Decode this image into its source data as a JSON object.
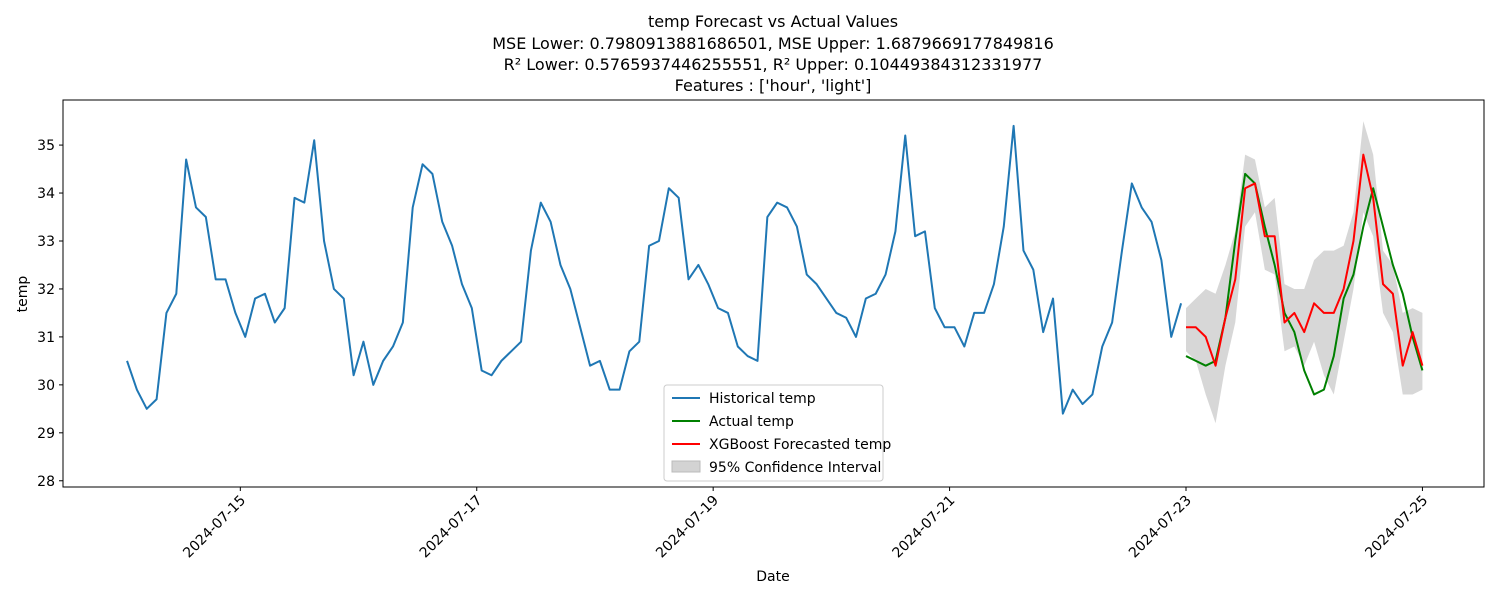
{
  "chart_data": {
    "type": "line",
    "title": [
      "temp Forecast vs Actual Values",
      "MSE Lower: 0.7980913881686501, MSE Upper: 1.6879669177849816",
      "R² Lower: 0.5765937446255551, R² Upper: 0.10449384312331977",
      "Features : ['hour', 'light']"
    ],
    "xlabel": "Date",
    "ylabel": "temp",
    "xlim": [
      "2024-07-13 12:00",
      "2024-07-25 12:30"
    ],
    "xticks": [
      "2024-07-15",
      "2024-07-17",
      "2024-07-19",
      "2024-07-21",
      "2024-07-23",
      "2024-07-25"
    ],
    "ylim": [
      27.87,
      35.94
    ],
    "yticks": [
      28,
      29,
      30,
      31,
      32,
      33,
      34,
      35
    ],
    "legend": "lower center",
    "x_history": [
      "2024-07-14 01:00",
      "2024-07-14 03:00",
      "2024-07-14 05:00",
      "2024-07-14 07:00",
      "2024-07-14 09:00",
      "2024-07-14 11:00",
      "2024-07-14 13:00",
      "2024-07-14 15:00",
      "2024-07-14 17:00",
      "2024-07-14 19:00",
      "2024-07-14 21:00",
      "2024-07-14 23:00",
      "2024-07-15 01:00",
      "2024-07-15 03:00",
      "2024-07-15 05:00",
      "2024-07-15 07:00",
      "2024-07-15 09:00",
      "2024-07-15 11:00",
      "2024-07-15 13:00",
      "2024-07-15 15:00",
      "2024-07-15 17:00",
      "2024-07-15 19:00",
      "2024-07-15 21:00",
      "2024-07-15 23:00",
      "2024-07-16 01:00",
      "2024-07-16 03:00",
      "2024-07-16 05:00",
      "2024-07-16 07:00",
      "2024-07-16 09:00",
      "2024-07-16 11:00",
      "2024-07-16 13:00",
      "2024-07-16 15:00",
      "2024-07-16 17:00",
      "2024-07-16 19:00",
      "2024-07-16 21:00",
      "2024-07-16 23:00",
      "2024-07-17 01:00",
      "2024-07-17 03:00",
      "2024-07-17 05:00",
      "2024-07-17 07:00",
      "2024-07-17 09:00",
      "2024-07-17 11:00",
      "2024-07-17 13:00",
      "2024-07-17 15:00",
      "2024-07-17 17:00",
      "2024-07-17 19:00",
      "2024-07-17 21:00",
      "2024-07-17 23:00",
      "2024-07-18 01:00",
      "2024-07-18 03:00",
      "2024-07-18 05:00",
      "2024-07-18 07:00",
      "2024-07-18 09:00",
      "2024-07-18 11:00",
      "2024-07-18 13:00",
      "2024-07-18 15:00",
      "2024-07-18 17:00",
      "2024-07-18 19:00",
      "2024-07-18 21:00",
      "2024-07-18 23:00",
      "2024-07-19 01:00",
      "2024-07-19 03:00",
      "2024-07-19 05:00",
      "2024-07-19 07:00",
      "2024-07-19 09:00",
      "2024-07-19 11:00",
      "2024-07-19 13:00",
      "2024-07-19 15:00",
      "2024-07-19 17:00",
      "2024-07-19 19:00",
      "2024-07-19 21:00",
      "2024-07-19 23:00",
      "2024-07-20 01:00",
      "2024-07-20 03:00",
      "2024-07-20 05:00",
      "2024-07-20 07:00",
      "2024-07-20 09:00",
      "2024-07-20 11:00",
      "2024-07-20 13:00",
      "2024-07-20 15:00",
      "2024-07-20 17:00",
      "2024-07-20 19:00",
      "2024-07-20 21:00",
      "2024-07-20 23:00",
      "2024-07-21 01:00",
      "2024-07-21 03:00",
      "2024-07-21 05:00",
      "2024-07-21 07:00",
      "2024-07-21 09:00",
      "2024-07-21 11:00",
      "2024-07-21 13:00",
      "2024-07-21 15:00",
      "2024-07-21 17:00",
      "2024-07-21 19:00",
      "2024-07-21 21:00",
      "2024-07-21 23:00",
      "2024-07-22 01:00",
      "2024-07-22 03:00",
      "2024-07-22 05:00",
      "2024-07-22 07:00",
      "2024-07-22 09:00",
      "2024-07-22 11:00",
      "2024-07-22 13:00",
      "2024-07-22 15:00",
      "2024-07-22 17:00",
      "2024-07-22 19:00",
      "2024-07-22 21:00",
      "2024-07-22 23:00"
    ],
    "x_forecast": [
      "2024-07-23 00:00",
      "2024-07-23 02:00",
      "2024-07-23 04:00",
      "2024-07-23 06:00",
      "2024-07-23 08:00",
      "2024-07-23 10:00",
      "2024-07-23 12:00",
      "2024-07-23 14:00",
      "2024-07-23 16:00",
      "2024-07-23 18:00",
      "2024-07-23 20:00",
      "2024-07-23 22:00",
      "2024-07-24 00:00",
      "2024-07-24 02:00",
      "2024-07-24 04:00",
      "2024-07-24 06:00",
      "2024-07-24 08:00",
      "2024-07-24 10:00",
      "2024-07-24 12:00",
      "2024-07-24 14:00",
      "2024-07-24 16:00",
      "2024-07-24 18:00",
      "2024-07-24 20:00",
      "2024-07-24 22:00",
      "2024-07-25 00:00"
    ],
    "series": [
      {
        "name": "Historical temp",
        "color": "#1f77b4",
        "x": "x_history",
        "values": [
          30.5,
          29.9,
          29.5,
          29.7,
          31.5,
          31.9,
          34.7,
          33.7,
          33.5,
          32.2,
          32.2,
          31.5,
          31.0,
          31.8,
          31.9,
          31.3,
          31.6,
          33.9,
          33.8,
          35.1,
          33.0,
          32.0,
          31.8,
          30.2,
          30.9,
          30.0,
          30.5,
          30.8,
          31.3,
          33.7,
          34.6,
          34.4,
          33.4,
          32.9,
          32.1,
          31.6,
          30.3,
          30.2,
          30.5,
          30.7,
          30.9,
          32.8,
          33.8,
          33.4,
          32.5,
          32.0,
          31.2,
          30.4,
          30.5,
          29.9,
          29.9,
          30.7,
          30.9,
          32.9,
          33.0,
          34.1,
          33.9,
          32.2,
          32.5,
          32.1,
          31.6,
          31.5,
          30.8,
          30.6,
          30.5,
          33.5,
          33.8,
          33.7,
          33.3,
          32.3,
          32.1,
          31.8,
          31.5,
          31.4,
          31.0,
          31.8,
          31.9,
          32.3,
          33.2,
          35.2,
          33.1,
          33.2,
          31.6,
          31.2,
          31.2,
          30.8,
          31.5,
          31.5,
          32.1,
          33.3,
          35.4,
          32.8,
          32.4,
          31.1,
          31.8,
          29.4,
          29.9,
          29.6,
          29.8,
          30.8,
          31.3,
          32.8,
          34.2,
          33.7,
          33.4,
          32.6,
          31.0,
          31.7
        ]
      },
      {
        "name": "Actual temp",
        "color": "#008000",
        "x": "x_forecast",
        "values": [
          30.6,
          30.5,
          30.4,
          30.5,
          31.4,
          33.0,
          34.4,
          34.2,
          33.3,
          32.5,
          31.5,
          31.1,
          30.3,
          29.8,
          29.9,
          30.6,
          31.8,
          32.3,
          33.3,
          34.1,
          33.3,
          32.5,
          31.9,
          31.0,
          30.3
        ]
      },
      {
        "name": "XGBoost Forecasted temp",
        "color": "#ff0000",
        "x": "x_forecast",
        "values": [
          31.2,
          31.2,
          31.0,
          30.4,
          31.4,
          32.2,
          34.1,
          34.2,
          33.1,
          33.1,
          31.3,
          31.5,
          31.1,
          31.7,
          31.5,
          31.5,
          32.0,
          33.0,
          34.8,
          33.9,
          32.1,
          31.9,
          30.4,
          31.1,
          30.4
        ]
      }
    ],
    "interval": {
      "name": "95% Confidence Interval",
      "color": "#d3d3d3",
      "x": "x_forecast",
      "lower": [
        30.7,
        30.5,
        29.8,
        29.2,
        30.4,
        31.3,
        33.3,
        33.6,
        32.4,
        32.3,
        30.7,
        30.8,
        30.4,
        30.9,
        30.2,
        29.8,
        30.9,
        32.0,
        33.6,
        33.1,
        31.5,
        31.1,
        29.8,
        29.8,
        29.9
      ],
      "upper": [
        31.6,
        31.8,
        32.0,
        31.9,
        32.5,
        33.2,
        34.8,
        34.7,
        33.7,
        33.9,
        32.1,
        32.0,
        32.0,
        32.6,
        32.8,
        32.8,
        32.9,
        33.6,
        35.5,
        34.8,
        32.8,
        32.5,
        31.5,
        31.6,
        31.5
      ]
    }
  }
}
